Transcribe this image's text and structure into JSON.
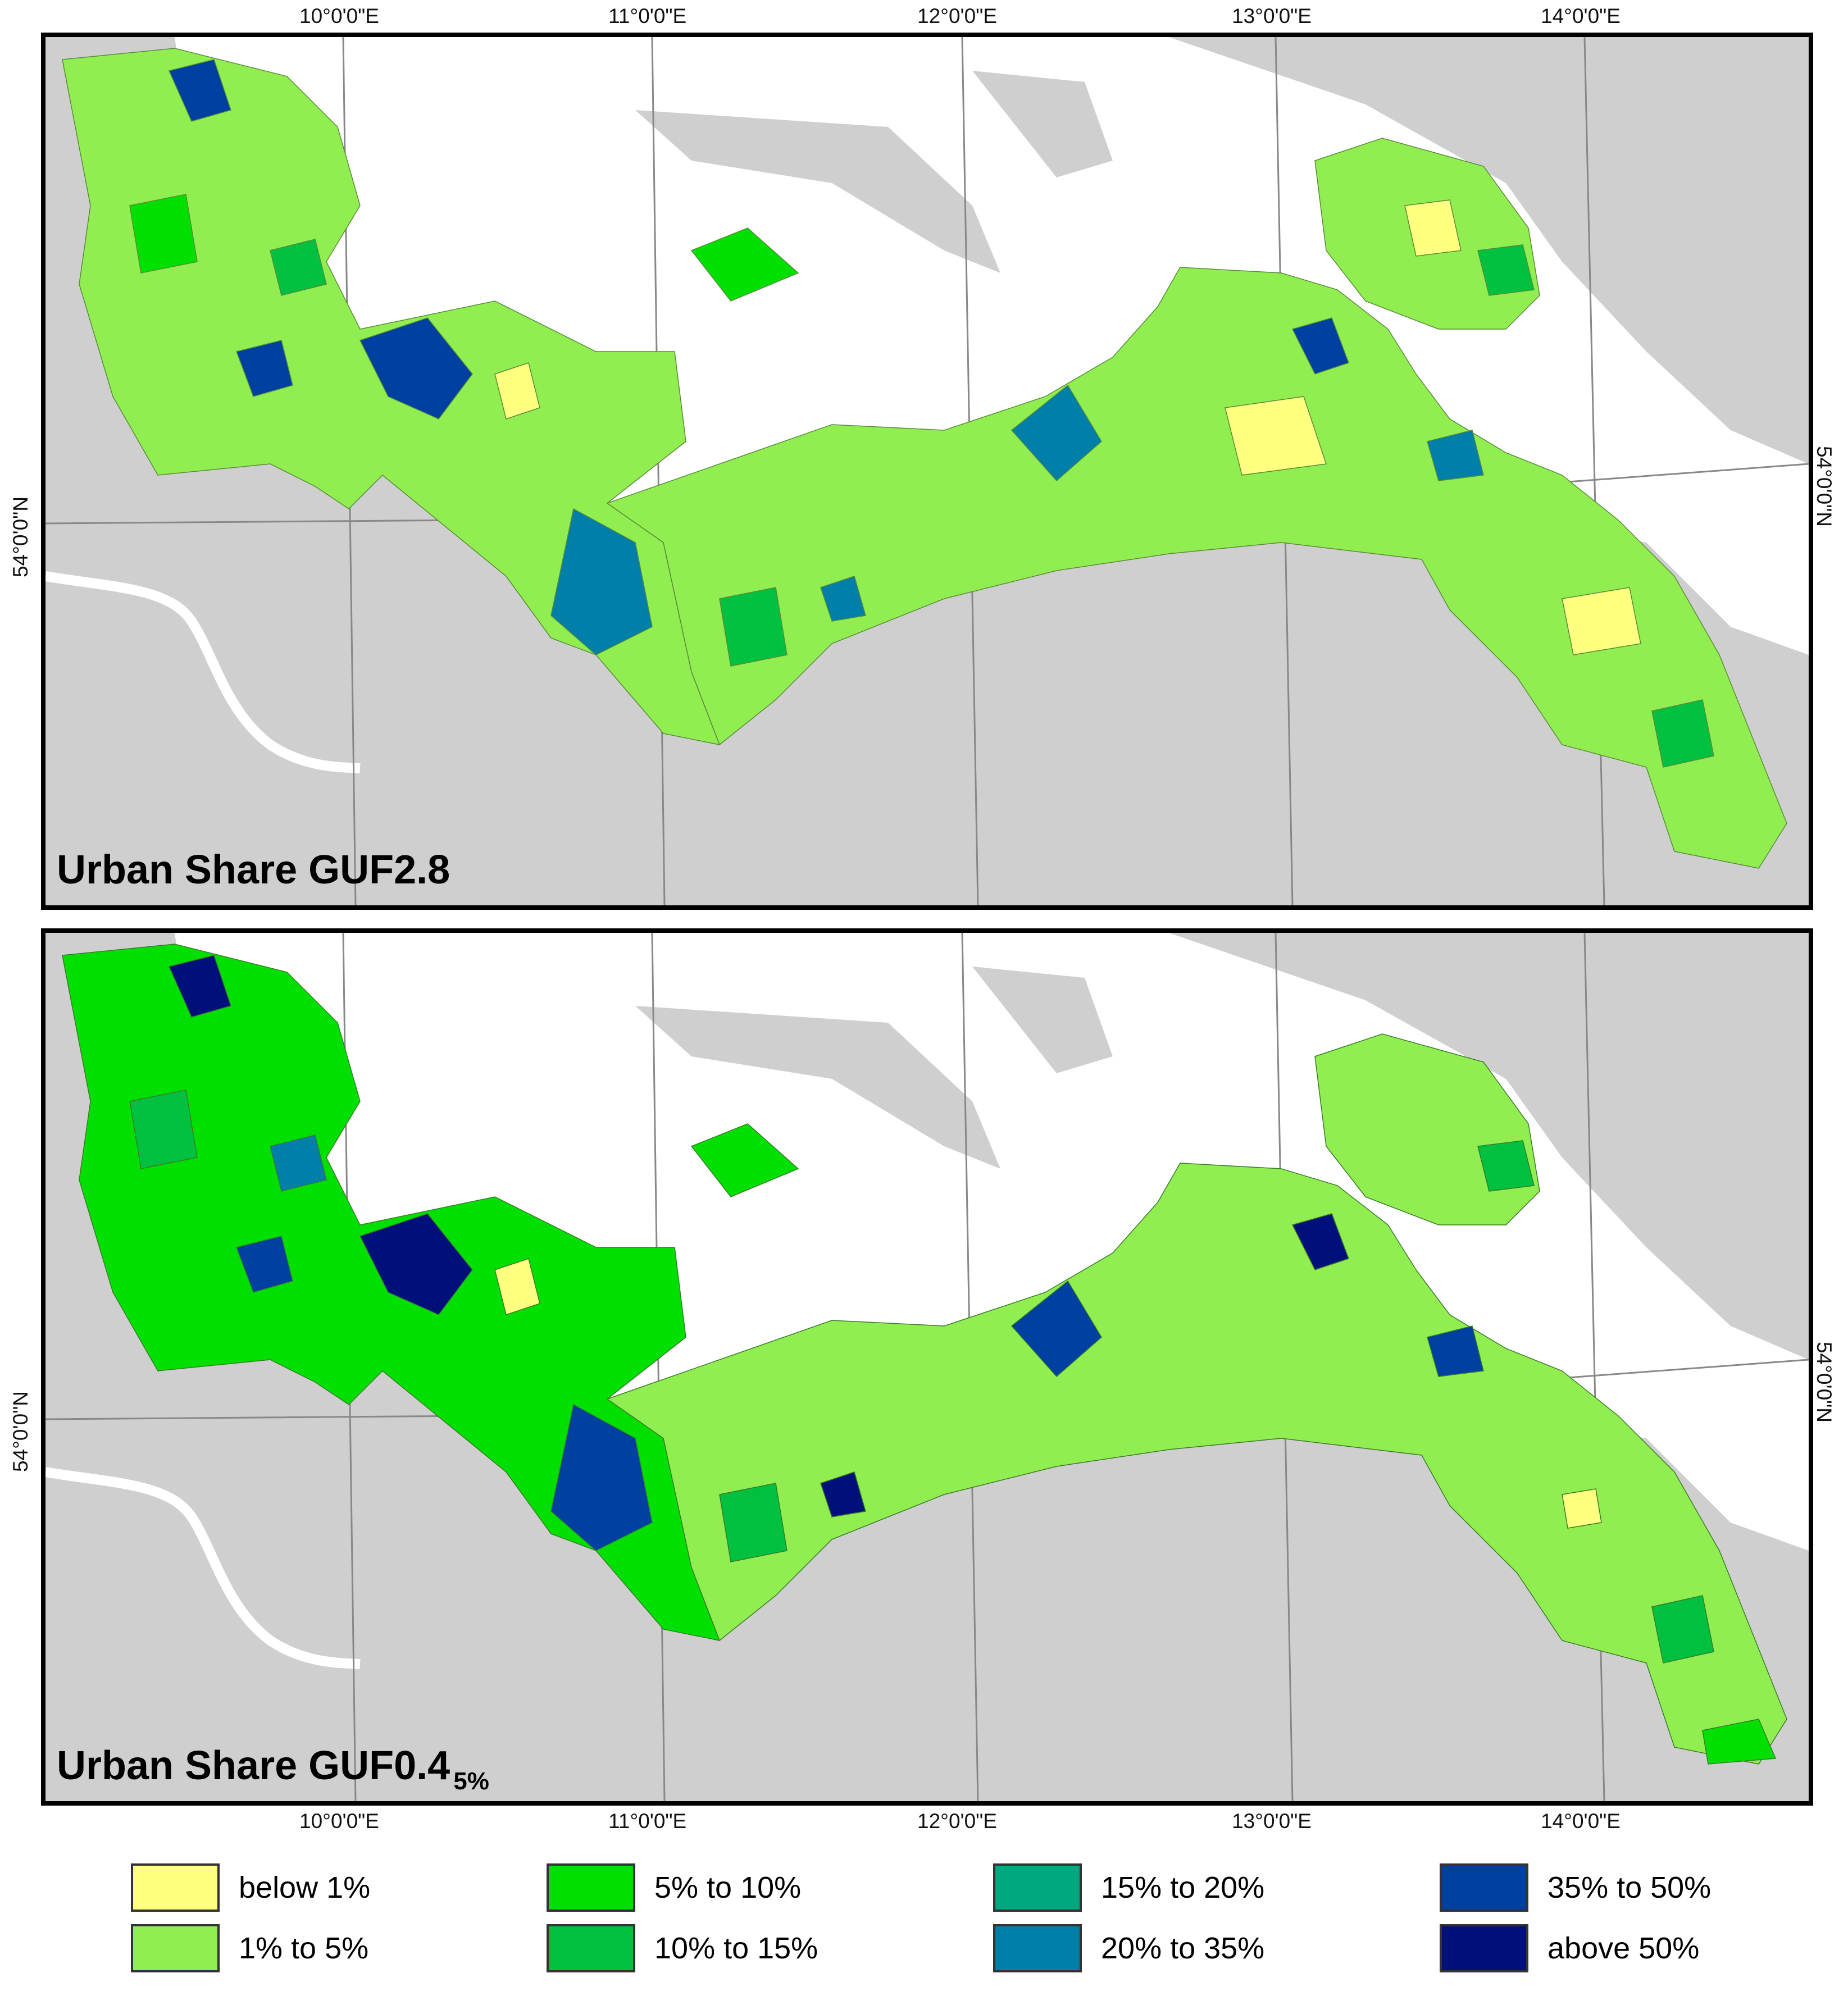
{
  "top_lon_labels": [
    "10°0'0\"E",
    "11°0'0\"E",
    "12°0'0\"E",
    "13°0'0\"E",
    "14°0'0\"E"
  ],
  "bottom_lon_labels": [
    "10°0'0\"E",
    "11°0'0\"E",
    "12°0'0\"E",
    "13°0'0\"E",
    "14°0'0\"E"
  ],
  "lat_label": "54°0'0\"N",
  "panels": [
    {
      "title": "Urban Share GUF2.8",
      "subtitle": ""
    },
    {
      "title": "Urban Share GUF0.4",
      "subtitle": "5%"
    }
  ],
  "legend": [
    {
      "label": "below 1%",
      "color": "#ffff80"
    },
    {
      "label": "1% to 5%",
      "color": "#90ee50"
    },
    {
      "label": "5% to 10%",
      "color": "#00e000"
    },
    {
      "label": "10% to 15%",
      "color": "#00c040"
    },
    {
      "label": "15% to 20%",
      "color": "#00a880"
    },
    {
      "label": "20% to 35%",
      "color": "#0080a8"
    },
    {
      "label": "35% to 50%",
      "color": "#0040a0"
    },
    {
      "label": "above 50%",
      "color": "#00107a"
    }
  ],
  "colors": {
    "land_background": "#cfcfcf",
    "water": "#ffffff",
    "graticule": "#888888"
  }
}
